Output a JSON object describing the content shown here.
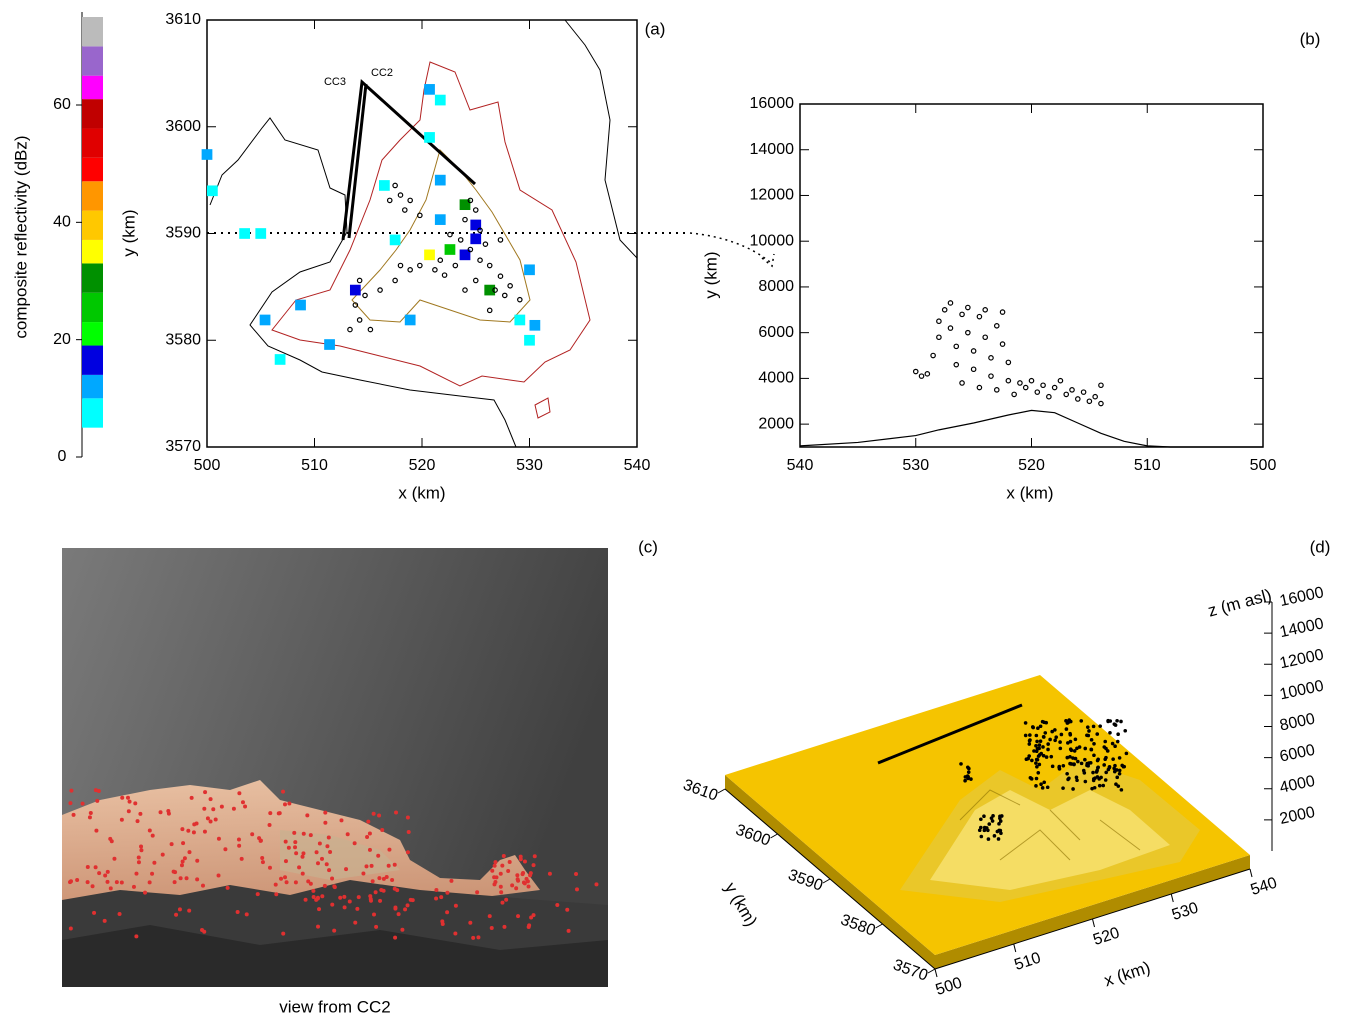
{
  "chart_data": [
    {
      "type": "map",
      "label": "(a)",
      "xlabel": "x (km)",
      "ylabel": "y (km)",
      "xlim": [
        500,
        540
      ],
      "ylim": [
        3570,
        3610
      ],
      "xticks": [
        500,
        510,
        520,
        530,
        540
      ],
      "yticks": [
        3570,
        3580,
        3590,
        3600,
        3610
      ],
      "annotations": [
        "CC3",
        "CC2"
      ],
      "cells": {
        "x": [
          500,
          500.5,
          503.5,
          505,
          520.7,
          521.7,
          520.7,
          521.7,
          516.5,
          524,
          521.7,
          525,
          522.6,
          524,
          520.7,
          526.3,
          513.8,
          508.7,
          505.4,
          511.4,
          506.8,
          518.9,
          530,
          529.1,
          530.5,
          530,
          525,
          517.5
        ],
        "y": [
          3597.4,
          3594,
          3590,
          3590,
          3603.5,
          3602.5,
          3599,
          3595,
          3594.5,
          3592.7,
          3591.3,
          3589.5,
          3588.5,
          3588,
          3588,
          3584.7,
          3584.7,
          3583.3,
          3581.9,
          3579.6,
          3578.2,
          3581.9,
          3586.6,
          3581.9,
          3581.4,
          3580,
          3590.8,
          3589.4
        ],
        "values": [
          12,
          7,
          7,
          7,
          12,
          7,
          7,
          12,
          7,
          30,
          12,
          16,
          25,
          16,
          35,
          30,
          16,
          12,
          12,
          12,
          7,
          12,
          12,
          7,
          12,
          7,
          16,
          7
        ]
      },
      "points": {
        "x": [
          517.5,
          518,
          518.4,
          517,
          518.9,
          519.8,
          524.5,
          525,
          524,
          525.4,
          524.5,
          525.4,
          526.3,
          527.3,
          528.2,
          527.7,
          526.8,
          529.1,
          523.1,
          522.1,
          521.2,
          519.8,
          518.9,
          518,
          517.5,
          516.1,
          514.7,
          513.8,
          514.2,
          515.2,
          513.3,
          514.2,
          525.9,
          527.3,
          523.6,
          522.6,
          521.7,
          526.3,
          525,
          524
        ],
        "y": [
          3594.5,
          3593.6,
          3592.2,
          3593.1,
          3593.1,
          3591.7,
          3593.1,
          3592.2,
          3591.3,
          3590.3,
          3588.5,
          3587.5,
          3587,
          3586,
          3585.1,
          3584.2,
          3584.7,
          3583.8,
          3587,
          3586.1,
          3586.6,
          3587,
          3586.6,
          3587,
          3585.6,
          3584.7,
          3584.2,
          3583.3,
          3581.9,
          3581,
          3581,
          3585.6,
          3589,
          3589.4,
          3589.4,
          3589.9,
          3587.5,
          3582.8,
          3585.6,
          3584.7
        ]
      },
      "colorbar": {
        "label": "composite reflectivity (dBz)",
        "ylim": [
          0,
          75
        ],
        "yticks": [
          0,
          20,
          40,
          60
        ],
        "bins": [
          5,
          10,
          14,
          19,
          23,
          28,
          33,
          37,
          42,
          47,
          51,
          56,
          61,
          65,
          70,
          75
        ],
        "colors": [
          "#00ffff",
          "#00a8ff",
          "#0000e0",
          "#00ff00",
          "#00c800",
          "#009000",
          "#ffff00",
          "#ffc800",
          "#ff9600",
          "#ff0000",
          "#e00000",
          "#c00000",
          "#ff00ff",
          "#9966cc",
          "#bbbbbb"
        ]
      }
    },
    {
      "type": "scatter",
      "label": "(b)",
      "xlabel": "x (km)",
      "ylabel": "y (km)",
      "xlim": [
        540,
        500
      ],
      "ylim": [
        1000,
        16000
      ],
      "xticks": [
        540,
        530,
        520,
        510,
        500
      ],
      "yticks": [
        2000,
        4000,
        6000,
        8000,
        10000,
        12000,
        14000,
        16000
      ],
      "points": {
        "x": [
          529,
          528.5,
          528,
          528,
          527.5,
          527,
          527,
          526.5,
          526.5,
          526,
          526,
          525.5,
          525.5,
          525,
          525,
          524.5,
          524.5,
          524,
          524,
          523.5,
          523.5,
          523,
          523,
          522.5,
          522.5,
          522,
          522,
          521.5,
          521,
          520.5,
          520,
          519.5,
          519,
          518.5,
          518,
          517.5,
          517,
          516.5,
          516,
          515.5,
          515,
          514.5,
          514,
          514,
          529.5,
          530
        ],
        "y": [
          4200,
          5000,
          5800,
          6500,
          7000,
          7300,
          6200,
          5400,
          4600,
          3800,
          6800,
          7100,
          6000,
          5200,
          4400,
          3600,
          6700,
          7000,
          5800,
          4900,
          4100,
          3500,
          6300,
          6900,
          5500,
          4700,
          3900,
          3300,
          3800,
          3600,
          3900,
          3400,
          3700,
          3200,
          3600,
          3900,
          3300,
          3500,
          3100,
          3400,
          3000,
          3200,
          3700,
          2900,
          4100,
          4300
        ]
      },
      "terrain": {
        "x": [
          540,
          535,
          530,
          528,
          525,
          522,
          520,
          518,
          516,
          514,
          512,
          510,
          508,
          505,
          500
        ],
        "y": [
          1050,
          1200,
          1500,
          1750,
          2050,
          2400,
          2600,
          2500,
          2050,
          1600,
          1250,
          1050,
          1000,
          1000,
          1000
        ]
      }
    },
    {
      "type": "image",
      "label": "(c)",
      "caption": "view from CC2"
    },
    {
      "type": "surface3d",
      "label": "(d)",
      "xlabel": "x (km)",
      "ylabel": "y (km)",
      "zlabel": "z (m asl)",
      "xlim": [
        500,
        540
      ],
      "ylim": [
        3570,
        3610
      ],
      "zlim": [
        0,
        16000
      ],
      "xticks": [
        500,
        510,
        520,
        530,
        540
      ],
      "yticks": [
        3570,
        3580,
        3590,
        3600,
        3610
      ],
      "zticks": [
        2000,
        4000,
        6000,
        8000,
        10000,
        12000,
        14000,
        16000
      ],
      "color": "#f5c400"
    }
  ]
}
